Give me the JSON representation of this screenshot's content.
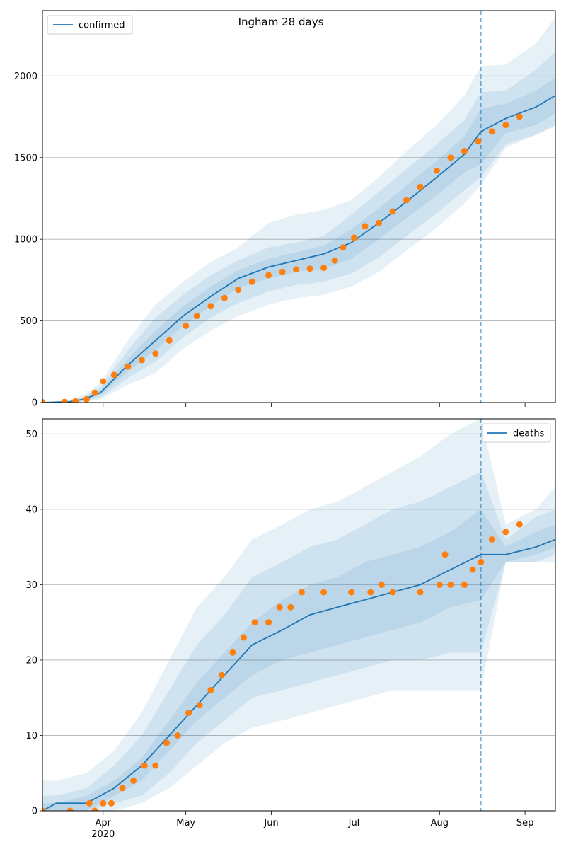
{
  "title": "Ingham 28 days",
  "colors": {
    "line": "#1f77b4",
    "observed": "#ff7f0e",
    "band": "#1f77b4",
    "grid": "#b0b0b0"
  },
  "chart_data": [
    {
      "type": "line",
      "panel": "top",
      "title": "Ingham 28 days",
      "legend": {
        "label": "confirmed",
        "placement": "top-left"
      },
      "xlabel": "",
      "ylabel": "",
      "xlim": [
        "2020-03-10",
        "2020-09-12"
      ],
      "ylim": [
        0,
        2400
      ],
      "yticks": [
        0,
        500,
        1000,
        1500,
        2000
      ],
      "xticks": [
        {
          "date": "2020-04-01",
          "label": "Apr",
          "sublabel": "2020"
        },
        {
          "date": "2020-05-01",
          "label": "May",
          "sublabel": ""
        },
        {
          "date": "2020-06-01",
          "label": "Jun",
          "sublabel": ""
        },
        {
          "date": "2020-07-01",
          "label": "Jul",
          "sublabel": ""
        },
        {
          "date": "2020-08-01",
          "label": "Aug",
          "sublabel": ""
        },
        {
          "date": "2020-09-01",
          "label": "Sep",
          "sublabel": ""
        }
      ],
      "grid": "y",
      "forecast_start": "2020-08-16",
      "model": {
        "x": [
          "2020-03-10",
          "2020-03-20",
          "2020-03-25",
          "2020-03-31",
          "2020-04-10",
          "2020-04-20",
          "2020-04-30",
          "2020-05-10",
          "2020-05-20",
          "2020-05-31",
          "2020-06-10",
          "2020-06-20",
          "2020-06-30",
          "2020-07-10",
          "2020-07-20",
          "2020-07-31",
          "2020-08-10",
          "2020-08-16",
          "2020-08-25",
          "2020-09-05",
          "2020-09-12"
        ],
        "median": [
          0,
          5,
          20,
          60,
          230,
          380,
          530,
          650,
          760,
          830,
          870,
          910,
          980,
          1100,
          1230,
          1380,
          1520,
          1660,
          1740,
          1810,
          1880
        ],
        "bands": [
          {
            "lo": [
              0,
              2,
              14,
              45,
              190,
              320,
              470,
              590,
              700,
              760,
              800,
              820,
              880,
              1000,
              1130,
              1270,
              1410,
              1460,
              1650,
              1700,
              1770
            ],
            "hi": [
              0,
              8,
              26,
              75,
              270,
              440,
              590,
              710,
              810,
              880,
              920,
              960,
              1060,
              1190,
              1330,
              1480,
              1630,
              1800,
              1830,
              1910,
              1990
            ]
          },
          {
            "lo": [
              0,
              1,
              8,
              30,
              150,
              250,
              400,
              520,
              610,
              680,
              720,
              740,
              790,
              890,
              1020,
              1160,
              1300,
              1380,
              1580,
              1640,
              1700
            ],
            "hi": [
              0,
              12,
              34,
              95,
              320,
              520,
              660,
              780,
              870,
              950,
              980,
              1020,
              1150,
              1290,
              1430,
              1580,
              1730,
              1900,
              1910,
              2040,
              2150
            ]
          },
          {
            "lo": [
              0,
              0,
              4,
              20,
              110,
              180,
              330,
              440,
              530,
              600,
              640,
              660,
              710,
              800,
              930,
              1070,
              1220,
              1330,
              1560,
              1640,
              1690
            ],
            "hi": [
              0,
              18,
              45,
              120,
              380,
              600,
              740,
              860,
              950,
              1100,
              1150,
              1180,
              1240,
              1380,
              1540,
              1700,
              1880,
              2060,
              2070,
              2200,
              2360
            ]
          }
        ]
      },
      "observed": {
        "x": [
          "2020-03-10",
          "2020-03-18",
          "2020-03-22",
          "2020-03-26",
          "2020-03-29",
          "2020-04-01",
          "2020-04-05",
          "2020-04-10",
          "2020-04-15",
          "2020-04-20",
          "2020-04-25",
          "2020-05-01",
          "2020-05-05",
          "2020-05-10",
          "2020-05-15",
          "2020-05-20",
          "2020-05-25",
          "2020-05-31",
          "2020-06-05",
          "2020-06-10",
          "2020-06-15",
          "2020-06-20",
          "2020-06-24",
          "2020-06-27",
          "2020-07-01",
          "2020-07-05",
          "2020-07-10",
          "2020-07-15",
          "2020-07-20",
          "2020-07-25",
          "2020-07-31",
          "2020-08-05",
          "2020-08-10",
          "2020-08-15",
          "2020-08-20",
          "2020-08-25",
          "2020-08-30"
        ],
        "values": [
          2,
          4,
          8,
          20,
          60,
          130,
          170,
          220,
          260,
          300,
          380,
          470,
          530,
          590,
          640,
          690,
          740,
          780,
          800,
          815,
          820,
          825,
          870,
          950,
          1010,
          1080,
          1100,
          1170,
          1240,
          1320,
          1420,
          1500,
          1540,
          1600,
          1660,
          1700,
          1750
        ]
      }
    },
    {
      "type": "line",
      "panel": "bottom",
      "legend": {
        "label": "deaths",
        "placement": "top-right"
      },
      "xlabel": "",
      "ylabel": "",
      "xlim": [
        "2020-03-10",
        "2020-09-12"
      ],
      "ylim": [
        0,
        52
      ],
      "yticks": [
        0,
        10,
        20,
        30,
        40,
        50
      ],
      "xticks": [
        {
          "date": "2020-04-01",
          "label": "Apr",
          "sublabel": "2020"
        },
        {
          "date": "2020-05-01",
          "label": "May",
          "sublabel": ""
        },
        {
          "date": "2020-06-01",
          "label": "Jun",
          "sublabel": ""
        },
        {
          "date": "2020-07-01",
          "label": "Jul",
          "sublabel": ""
        },
        {
          "date": "2020-08-01",
          "label": "Aug",
          "sublabel": ""
        },
        {
          "date": "2020-09-01",
          "label": "Sep",
          "sublabel": ""
        }
      ],
      "grid": "y",
      "forecast_start": "2020-08-16",
      "model": {
        "x": [
          "2020-03-10",
          "2020-03-15",
          "2020-03-26",
          "2020-04-05",
          "2020-04-15",
          "2020-04-25",
          "2020-05-05",
          "2020-05-15",
          "2020-05-25",
          "2020-06-05",
          "2020-06-15",
          "2020-06-25",
          "2020-07-05",
          "2020-07-15",
          "2020-07-25",
          "2020-08-05",
          "2020-08-16",
          "2020-08-25",
          "2020-09-05",
          "2020-09-12"
        ],
        "median": [
          0,
          1,
          1,
          3,
          6,
          10,
          14,
          18,
          22,
          24,
          26,
          27,
          28,
          29,
          30,
          32,
          34,
          34,
          35,
          36
        ],
        "bands": [
          {
            "lo": [
              0,
              0,
              0,
              2,
              4,
              8,
              12,
              15,
              18,
              20,
              21,
              22,
              23,
              24,
              25,
              27,
              28,
              33,
              34,
              35
            ],
            "hi": [
              1,
              1,
              2,
              4,
              7,
              12,
              17,
              21,
              25,
              28,
              30,
              31,
              33,
              34,
              35,
              37,
              40,
              35,
              37,
              38
            ]
          },
          {
            "lo": [
              0,
              0,
              0,
              1,
              2,
              5,
              9,
              12,
              15,
              16,
              17,
              18,
              19,
              20,
              20,
              21,
              21,
              33,
              33,
              34
            ],
            "hi": [
              2,
              2,
              3,
              6,
              10,
              16,
              22,
              26,
              31,
              33,
              35,
              36,
              38,
              40,
              41,
              43,
              45,
              36,
              39,
              40
            ]
          },
          {
            "lo": [
              0,
              0,
              0,
              0,
              1,
              3,
              6,
              9,
              11,
              12,
              13,
              14,
              15,
              16,
              16,
              16,
              16,
              33,
              33,
              33
            ],
            "hi": [
              4,
              4,
              5,
              8,
              13,
              20,
              27,
              31,
              36,
              38,
              40,
              41,
              43,
              45,
              47,
              50,
              52,
              38,
              40,
              43
            ]
          }
        ]
      },
      "observed": {
        "x": [
          "2020-03-10",
          "2020-03-20",
          "2020-03-27",
          "2020-03-29",
          "2020-04-01",
          "2020-04-04",
          "2020-04-08",
          "2020-04-12",
          "2020-04-16",
          "2020-04-20",
          "2020-04-24",
          "2020-04-28",
          "2020-05-02",
          "2020-05-06",
          "2020-05-10",
          "2020-05-14",
          "2020-05-18",
          "2020-05-22",
          "2020-05-26",
          "2020-05-31",
          "2020-06-04",
          "2020-06-08",
          "2020-06-12",
          "2020-06-20",
          "2020-06-30",
          "2020-07-07",
          "2020-07-11",
          "2020-07-15",
          "2020-07-25",
          "2020-08-01",
          "2020-08-03",
          "2020-08-05",
          "2020-08-10",
          "2020-08-13",
          "2020-08-16",
          "2020-08-20",
          "2020-08-25",
          "2020-08-30"
        ],
        "values": [
          0,
          0,
          1,
          0,
          1,
          1,
          3,
          4,
          6,
          6,
          9,
          10,
          13,
          14,
          16,
          18,
          21,
          23,
          25,
          25,
          27,
          27,
          29,
          29,
          29,
          29,
          30,
          29,
          29,
          30,
          34,
          30,
          30,
          32,
          33,
          36,
          37,
          38
        ]
      }
    }
  ]
}
